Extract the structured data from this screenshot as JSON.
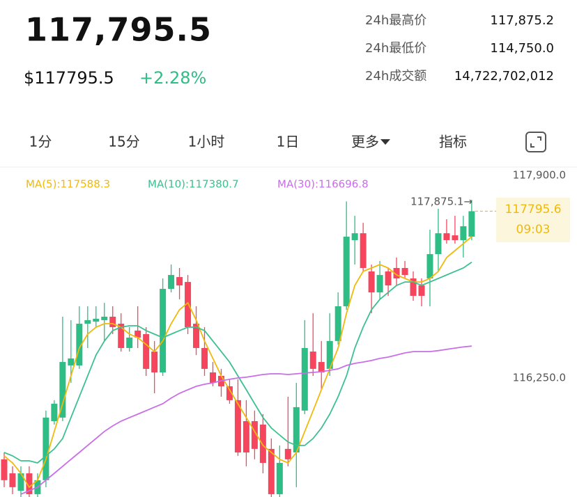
{
  "header": {
    "price": "117,795.5",
    "usd_price": "$117795.5",
    "change": "+2.28%",
    "stats": [
      {
        "label": "24h最高价",
        "value": "117,875.2"
      },
      {
        "label": "24h最低价",
        "value": "114,750.0"
      },
      {
        "label": "24h成交额",
        "value": "14,722,702,012"
      }
    ]
  },
  "tabs": {
    "items": [
      "1分",
      "15分",
      "1小时",
      "1日",
      "更多",
      "指标"
    ],
    "active": 2
  },
  "chart_data": {
    "type": "candlestick",
    "ylim": [
      115467,
      118144
    ],
    "yticks": [
      {
        "value": 117900,
        "label": "117,900.0"
      },
      {
        "value": 116250,
        "label": "116,250.0"
      }
    ],
    "grid": false,
    "up_color": "#2ebd85",
    "down_color": "#f6465d",
    "ohlc": [
      [
        115774,
        115830,
        115547,
        115604
      ],
      [
        115660,
        115717,
        115490,
        115547
      ],
      [
        115518,
        115717,
        115467,
        115660
      ],
      [
        115660,
        115717,
        115467,
        115490
      ],
      [
        115490,
        115660,
        115467,
        115604
      ],
      [
        115604,
        116171,
        115547,
        116114
      ],
      [
        116085,
        116256,
        116057,
        116227
      ],
      [
        116114,
        116936,
        116085,
        116567
      ],
      [
        116539,
        116908,
        116397,
        116596
      ],
      [
        116539,
        117021,
        116511,
        116879
      ],
      [
        116879,
        117021,
        116681,
        116908
      ],
      [
        116896,
        117021,
        116851,
        116919
      ],
      [
        116908,
        117049,
        116738,
        116936
      ],
      [
        116936,
        117021,
        116794,
        116851
      ],
      [
        116879,
        116964,
        116652,
        116681
      ],
      [
        116681,
        116851,
        116652,
        116766
      ],
      [
        116823,
        117021,
        116681,
        116766
      ],
      [
        116794,
        116851,
        116454,
        116511
      ],
      [
        116652,
        116738,
        116312,
        116482
      ],
      [
        116482,
        117248,
        116454,
        117163
      ],
      [
        117163,
        117361,
        117134,
        117276
      ],
      [
        117259,
        117333,
        117078,
        117191
      ],
      [
        117219,
        117276,
        116794,
        116851
      ],
      [
        116879,
        117021,
        116624,
        116681
      ],
      [
        116681,
        116851,
        116454,
        116511
      ],
      [
        116482,
        116567,
        116369,
        116397
      ],
      [
        116454,
        116511,
        116284,
        116369
      ],
      [
        116369,
        116426,
        116227,
        116256
      ],
      [
        116256,
        116426,
        115802,
        115830
      ],
      [
        116085,
        116256,
        115717,
        115830
      ],
      [
        116085,
        116171,
        115774,
        115859
      ],
      [
        116057,
        116142,
        115660,
        115745
      ],
      [
        115859,
        115944,
        115467,
        115490
      ],
      [
        115490,
        115887,
        115467,
        115745
      ],
      [
        115859,
        116284,
        115717,
        115774
      ],
      [
        115830,
        116397,
        115547,
        116199
      ],
      [
        116171,
        116908,
        116142,
        116681
      ],
      [
        116652,
        116964,
        116454,
        116511
      ],
      [
        116567,
        116738,
        116341,
        116482
      ],
      [
        116511,
        116964,
        116454,
        116738
      ],
      [
        116738,
        117134,
        116709,
        117021
      ],
      [
        117021,
        117875.1,
        116993,
        117588
      ],
      [
        117560,
        117758,
        117361,
        117616
      ],
      [
        117616,
        117701,
        117305,
        117333
      ],
      [
        117305,
        117361,
        116964,
        117134
      ],
      [
        117134,
        117390,
        117078,
        117276
      ],
      [
        117305,
        117333,
        117106,
        117191
      ],
      [
        117333,
        117418,
        117191,
        117248
      ],
      [
        117333,
        117390,
        117248,
        117276
      ],
      [
        117248,
        117305,
        117066,
        117106
      ],
      [
        117191,
        117248,
        117021,
        117106
      ],
      [
        117248,
        117645,
        117021,
        117446
      ],
      [
        117446,
        117815,
        117305,
        117616
      ],
      [
        117616,
        117730,
        117531,
        117560
      ],
      [
        117599,
        117758,
        117531,
        117560
      ],
      [
        117560,
        117758,
        117418,
        117673
      ],
      [
        117588,
        117889,
        117560,
        117795.6
      ]
    ],
    "series": [
      {
        "name": "MA(5):117588.3",
        "color": "#f0b90b",
        "values": [
          115802,
          115745,
          115660,
          115547,
          115604,
          115774,
          116001,
          116227,
          116454,
          116681,
          116794,
          116851,
          116879,
          116879,
          116851,
          116794,
          116766,
          116709,
          116652,
          116738,
          116879,
          116993,
          117049,
          116908,
          116738,
          116596,
          116454,
          116341,
          116227,
          116114,
          116001,
          115887,
          115830,
          115774,
          115745,
          115830,
          116001,
          116171,
          116341,
          116511,
          116681,
          116964,
          117191,
          117305,
          117333,
          117361,
          117333,
          117276,
          117248,
          117219,
          117219,
          117248,
          117305,
          117418,
          117475,
          117531,
          117588.3
        ]
      },
      {
        "name": "MA(10):117380.7",
        "color": "#3cc08f",
        "values": [
          115830,
          115802,
          115762,
          115762,
          115745,
          115802,
          115859,
          115944,
          116114,
          116284,
          116454,
          116624,
          116738,
          116823,
          116851,
          116862,
          116862,
          116823,
          116794,
          116766,
          116794,
          116823,
          116851,
          116851,
          116823,
          116738,
          116652,
          116567,
          116454,
          116341,
          116227,
          116114,
          116029,
          115972,
          115915,
          115887,
          115887,
          115944,
          116029,
          116142,
          116284,
          116454,
          116681,
          116851,
          116993,
          117078,
          117134,
          117191,
          117219,
          117219,
          117191,
          117219,
          117248,
          117276,
          117305,
          117333,
          117380.7
        ]
      },
      {
        "name": "MA(30):116696.8",
        "color": "#c86ee8",
        "values": [
          null,
          null,
          115490,
          115518,
          115547,
          115604,
          115660,
          115717,
          115774,
          115830,
          115887,
          115944,
          116001,
          116046,
          116085,
          116114,
          116142,
          116171,
          116199,
          116227,
          116273,
          116312,
          116341,
          116369,
          116386,
          116397,
          116414,
          116426,
          116437,
          116443,
          116454,
          116465,
          116471,
          116471,
          116465,
          116471,
          116477,
          116482,
          116488,
          116499,
          116511,
          116539,
          116556,
          116567,
          116579,
          116596,
          116607,
          116624,
          116641,
          116652,
          116652,
          116652,
          116660,
          116670,
          116680,
          116690,
          116696.8
        ]
      }
    ],
    "annotation": "117,875.1→",
    "last_price_label": "117795.6",
    "last_time": "09:03",
    "last_color": "#f0b90b"
  }
}
